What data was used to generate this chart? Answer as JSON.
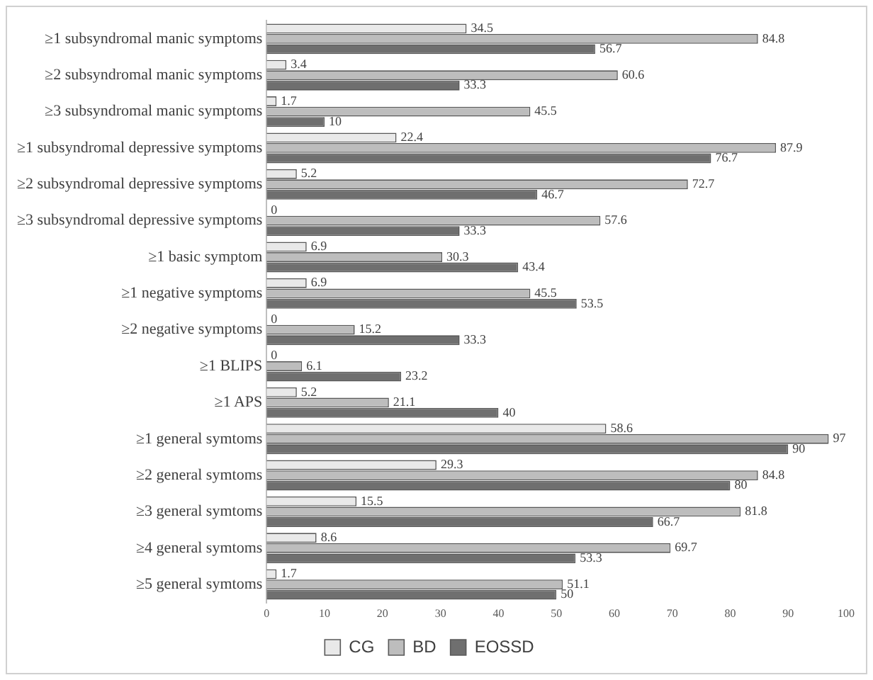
{
  "chart_data": {
    "type": "bar",
    "orientation": "horizontal",
    "data_labels": true,
    "legend": "bottom",
    "grid": false,
    "categories": [
      "≥1 subsyndromal manic symptoms",
      "≥2 subsyndromal manic symptoms",
      "≥3 subsyndromal manic symptoms",
      "≥1 subsyndromal depressive symptoms",
      "≥2 subsyndromal depressive symptoms",
      "≥3 subsyndromal depressive symptoms",
      "≥1 basic symptom",
      "≥1 negative symptoms",
      "≥2 negative symptoms",
      "≥1 BLIPS",
      "≥1 APS",
      "≥1 general symtoms",
      "≥2 general symtoms",
      "≥3 general symtoms",
      "≥4 general symtoms",
      "≥5 general symtoms"
    ],
    "xlim": [
      0,
      100
    ],
    "xticks": [
      0,
      10,
      20,
      30,
      40,
      50,
      60,
      70,
      80,
      90,
      100
    ],
    "series": [
      {
        "name": "CG",
        "color": "#e9e9e9",
        "values": [
          34.5,
          3.4,
          1.7,
          22.4,
          5.2,
          0,
          6.9,
          6.9,
          0,
          0,
          5.2,
          58.6,
          29.3,
          15.5,
          8.6,
          1.7
        ]
      },
      {
        "name": "BD",
        "color": "#bdbdbd",
        "values": [
          84.8,
          60.6,
          45.5,
          87.9,
          72.7,
          57.6,
          30.3,
          45.5,
          15.2,
          6.1,
          21.1,
          97,
          84.8,
          81.8,
          69.7,
          51.1
        ]
      },
      {
        "name": "EOSSD",
        "color": "#6f6f6f",
        "values": [
          56.7,
          33.3,
          10,
          76.7,
          46.7,
          33.3,
          43.4,
          53.5,
          33.3,
          23.2,
          40,
          90,
          80,
          66.7,
          53.3,
          50
        ]
      }
    ]
  }
}
